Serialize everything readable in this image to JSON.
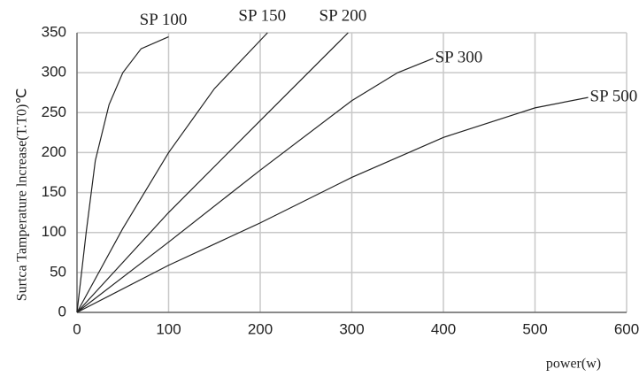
{
  "chart_data": {
    "type": "line",
    "xlabel": "power(w)",
    "ylabel": "Surtca  Tamperature  lncrease(T.T0)℃",
    "xlim": [
      0,
      600
    ],
    "xticks": [
      0,
      100,
      200,
      300,
      400,
      500,
      600
    ],
    "ylim": [
      0,
      350
    ],
    "yticks": [
      0,
      50,
      100,
      150,
      200,
      250,
      300,
      350
    ],
    "grid": true,
    "series": [
      {
        "name": "SP 100",
        "color": "#222222",
        "x": [
          0,
          10,
          20,
          35,
          50,
          70,
          100
        ],
        "values": [
          0,
          100,
          190,
          260,
          300,
          330,
          345
        ]
      },
      {
        "name": "SP 150",
        "color": "#222222",
        "x": [
          0,
          50,
          100,
          150,
          208
        ],
        "values": [
          0,
          105,
          200,
          280,
          350
        ]
      },
      {
        "name": "SP 200",
        "color": "#222222",
        "x": [
          0,
          100,
          200,
          296
        ],
        "values": [
          0,
          125,
          240,
          350
        ]
      },
      {
        "name": "SP 300",
        "color": "#222222",
        "x": [
          0,
          100,
          200,
          300,
          350,
          389
        ],
        "values": [
          0,
          88,
          178,
          265,
          300,
          318
        ]
      },
      {
        "name": "SP 500",
        "color": "#222222",
        "x": [
          0,
          100,
          200,
          300,
          400,
          500,
          558
        ],
        "values": [
          0,
          59,
          112,
          169,
          219,
          256,
          269
        ]
      }
    ]
  }
}
